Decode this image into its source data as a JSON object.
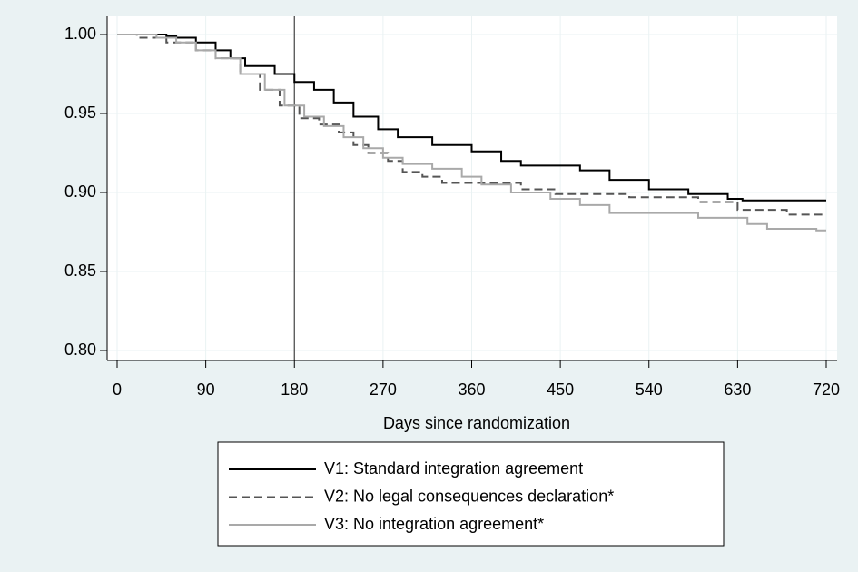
{
  "chart_data": {
    "type": "line",
    "step": true,
    "x_label": "Days since randomization",
    "xlim": [
      0,
      720
    ],
    "xticks": [
      0,
      90,
      180,
      270,
      360,
      450,
      540,
      630,
      720
    ],
    "ylim": [
      0.8,
      1.0
    ],
    "yticks": [
      {
        "value": 0.8,
        "label": "0.80"
      },
      {
        "value": 0.85,
        "label": "0.85"
      },
      {
        "value": 0.9,
        "label": "0.90"
      },
      {
        "value": 0.95,
        "label": "0.95"
      },
      {
        "value": 1.0,
        "label": "1.00"
      }
    ],
    "grid": true,
    "vline": 180,
    "series": [
      {
        "name": "V1: Standard integration agreement",
        "color": "#000000",
        "dash": "solid",
        "x": [
          0,
          50,
          60,
          80,
          100,
          115,
          130,
          160,
          180,
          200,
          220,
          240,
          265,
          285,
          320,
          360,
          390,
          410,
          470,
          500,
          540,
          580,
          620,
          635,
          720
        ],
        "values": [
          1.0,
          0.999,
          0.998,
          0.995,
          0.99,
          0.985,
          0.98,
          0.975,
          0.97,
          0.965,
          0.957,
          0.948,
          0.94,
          0.935,
          0.93,
          0.926,
          0.92,
          0.917,
          0.914,
          0.908,
          0.902,
          0.899,
          0.896,
          0.895,
          0.895
        ]
      },
      {
        "name": "V2: No legal consequences declaration*",
        "color": "#555555",
        "dash": "dashed",
        "x": [
          0,
          20,
          50,
          80,
          100,
          125,
          145,
          165,
          185,
          205,
          225,
          240,
          255,
          275,
          290,
          310,
          330,
          410,
          445,
          520,
          590,
          630,
          680,
          720
        ],
        "values": [
          1.0,
          0.998,
          0.995,
          0.99,
          0.985,
          0.975,
          0.965,
          0.955,
          0.947,
          0.943,
          0.938,
          0.93,
          0.925,
          0.92,
          0.913,
          0.91,
          0.906,
          0.902,
          0.899,
          0.897,
          0.894,
          0.889,
          0.886,
          0.886
        ]
      },
      {
        "name": "V3: No integration agreement*",
        "color": "#a9a9a9",
        "dash": "solid",
        "x": [
          0,
          40,
          60,
          80,
          100,
          125,
          150,
          170,
          190,
          210,
          230,
          250,
          270,
          290,
          320,
          350,
          370,
          400,
          440,
          470,
          500,
          590,
          640,
          660,
          710,
          720
        ],
        "values": [
          1.0,
          0.998,
          0.995,
          0.99,
          0.985,
          0.975,
          0.965,
          0.955,
          0.948,
          0.942,
          0.935,
          0.928,
          0.922,
          0.918,
          0.915,
          0.91,
          0.905,
          0.9,
          0.896,
          0.892,
          0.887,
          0.884,
          0.88,
          0.877,
          0.876,
          0.876
        ]
      }
    ]
  }
}
